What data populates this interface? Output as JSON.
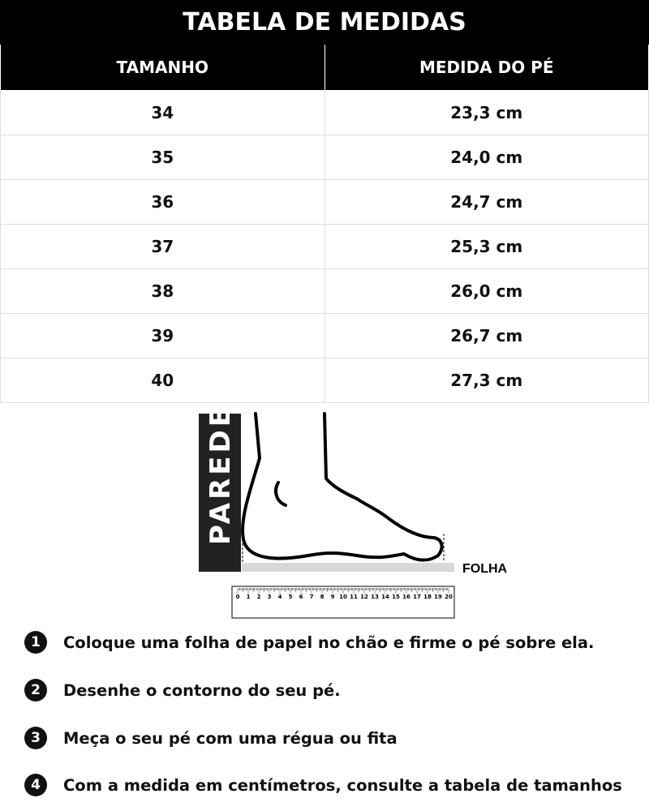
{
  "title": "TABELA DE MEDIDAS",
  "table": {
    "headers": [
      "TAMANHO",
      "MEDIDA DO PÉ"
    ],
    "rows": [
      [
        "34",
        "23,3 cm"
      ],
      [
        "35",
        "24,0 cm"
      ],
      [
        "36",
        "24,7 cm"
      ],
      [
        "37",
        "25,3 cm"
      ],
      [
        "38",
        "26,0 cm"
      ],
      [
        "39",
        "26,7 cm"
      ],
      [
        "40",
        "27,3 cm"
      ]
    ]
  },
  "diagram": {
    "wall_label": "PAREDE",
    "sheet_label": "FOLHA",
    "ruler_labels": [
      "0",
      "1",
      "2",
      "3",
      "4",
      "5",
      "6",
      "7",
      "8",
      "9",
      "10",
      "11",
      "12",
      "13",
      "14",
      "15",
      "16",
      "17",
      "18",
      "19",
      "20"
    ]
  },
  "steps": [
    {
      "n": "1",
      "text": "Coloque uma folha de papel no chão e firme o pé sobre ela."
    },
    {
      "n": "2",
      "text": "Desenhe o contorno do seu pé."
    },
    {
      "n": "3",
      "text": "Meça o seu pé com uma régua ou fita"
    },
    {
      "n": "4",
      "text": "Com a medida em centímetros, consulte a tabela de tamanhos"
    }
  ]
}
